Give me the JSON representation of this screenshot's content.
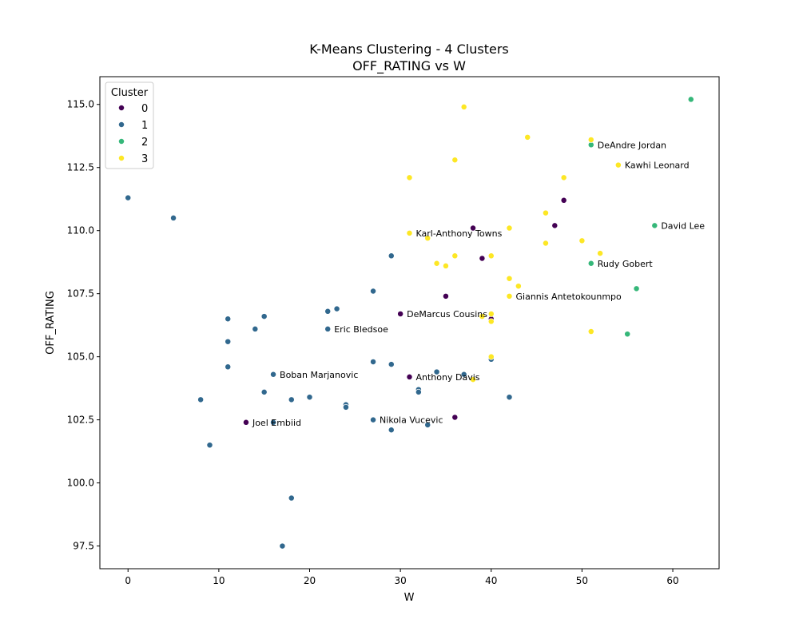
{
  "chart_data": {
    "type": "scatter",
    "title": "K-Means Clustering - 4 Clusters",
    "subtitle": "OFF_RATING vs W",
    "xlabel": "W",
    "ylabel": "OFF_RATING",
    "xlim": [
      -3.1,
      65.1
    ],
    "ylim": [
      96.6,
      116.1
    ],
    "xticks": [
      0,
      10,
      20,
      30,
      40,
      50,
      60
    ],
    "xtick_labels": [
      "0",
      "10",
      "20",
      "30",
      "40",
      "50",
      "60"
    ],
    "yticks": [
      97.5,
      100.0,
      102.5,
      105.0,
      107.5,
      110.0,
      112.5,
      115.0
    ],
    "ytick_labels": [
      "97.5",
      "100.0",
      "102.5",
      "105.0",
      "107.5",
      "110.0",
      "112.5",
      "115.0"
    ],
    "grid": false,
    "legend": {
      "title": "Cluster",
      "position": "top-left"
    },
    "series": [
      {
        "name": "0",
        "color": "#440154",
        "points": [
          [
            13,
            102.4
          ],
          [
            30,
            106.7
          ],
          [
            31,
            104.2
          ],
          [
            35,
            107.4
          ],
          [
            36,
            102.6
          ],
          [
            38,
            110.1
          ],
          [
            39,
            108.9
          ],
          [
            40,
            106.5
          ],
          [
            47,
            110.2
          ],
          [
            48,
            111.2
          ]
        ]
      },
      {
        "name": "1",
        "color": "#31688e",
        "points": [
          [
            0,
            111.3
          ],
          [
            5,
            110.5
          ],
          [
            8,
            103.3
          ],
          [
            9,
            101.5
          ],
          [
            11,
            106.5
          ],
          [
            11,
            105.6
          ],
          [
            11,
            104.6
          ],
          [
            14,
            106.1
          ],
          [
            15,
            106.6
          ],
          [
            15,
            103.6
          ],
          [
            16,
            104.3
          ],
          [
            16,
            102.4
          ],
          [
            17,
            97.5
          ],
          [
            18,
            103.3
          ],
          [
            18,
            99.4
          ],
          [
            20,
            103.4
          ],
          [
            22,
            106.8
          ],
          [
            22,
            106.1
          ],
          [
            23,
            106.9
          ],
          [
            24,
            103.1
          ],
          [
            24,
            103.0
          ],
          [
            27,
            107.6
          ],
          [
            27,
            104.8
          ],
          [
            27,
            102.5
          ],
          [
            29,
            109.0
          ],
          [
            29,
            104.7
          ],
          [
            29,
            102.1
          ],
          [
            32,
            103.7
          ],
          [
            32,
            103.6
          ],
          [
            33,
            102.3
          ],
          [
            34,
            104.4
          ],
          [
            37,
            104.3
          ],
          [
            40,
            104.9
          ],
          [
            42,
            103.4
          ]
        ]
      },
      {
        "name": "2",
        "color": "#35b779",
        "points": [
          [
            51,
            113.4
          ],
          [
            51,
            108.7
          ],
          [
            55,
            105.9
          ],
          [
            56,
            107.7
          ],
          [
            58,
            110.2
          ],
          [
            62,
            115.2
          ]
        ]
      },
      {
        "name": "3",
        "color": "#fde725",
        "points": [
          [
            31,
            112.1
          ],
          [
            31,
            109.9
          ],
          [
            33,
            109.7
          ],
          [
            34,
            108.7
          ],
          [
            35,
            108.6
          ],
          [
            36,
            112.8
          ],
          [
            36,
            109.0
          ],
          [
            37,
            114.9
          ],
          [
            38,
            104.1
          ],
          [
            39,
            106.6
          ],
          [
            40,
            109.0
          ],
          [
            40,
            106.7
          ],
          [
            40,
            106.4
          ],
          [
            40,
            105.0
          ],
          [
            42,
            110.1
          ],
          [
            42,
            108.1
          ],
          [
            42,
            107.4
          ],
          [
            43,
            107.8
          ],
          [
            44,
            113.7
          ],
          [
            46,
            110.7
          ],
          [
            46,
            109.5
          ],
          [
            48,
            112.1
          ],
          [
            50,
            109.6
          ],
          [
            51,
            113.6
          ],
          [
            51,
            106.0
          ],
          [
            52,
            109.1
          ],
          [
            54,
            112.6
          ]
        ]
      }
    ],
    "annotations": [
      {
        "text": "DeAndre Jordan",
        "x": 51,
        "y": 113.4
      },
      {
        "text": "Kawhi Leonard",
        "x": 54,
        "y": 112.6
      },
      {
        "text": "David Lee",
        "x": 58,
        "y": 110.2
      },
      {
        "text": "Karl-Anthony Towns",
        "x": 31,
        "y": 109.9
      },
      {
        "text": "Rudy Gobert",
        "x": 51,
        "y": 108.7
      },
      {
        "text": "Giannis Antetokounmpo",
        "x": 42,
        "y": 107.4
      },
      {
        "text": "DeMarcus Cousins",
        "x": 30,
        "y": 106.7
      },
      {
        "text": "Eric Bledsoe",
        "x": 22,
        "y": 106.1
      },
      {
        "text": "Boban Marjanovic",
        "x": 16,
        "y": 104.3
      },
      {
        "text": "Anthony Davis",
        "x": 31,
        "y": 104.2
      },
      {
        "text": "Nikola Vucevic",
        "x": 27,
        "y": 102.5
      },
      {
        "text": "Joel Embiid",
        "x": 13,
        "y": 102.4
      }
    ]
  }
}
